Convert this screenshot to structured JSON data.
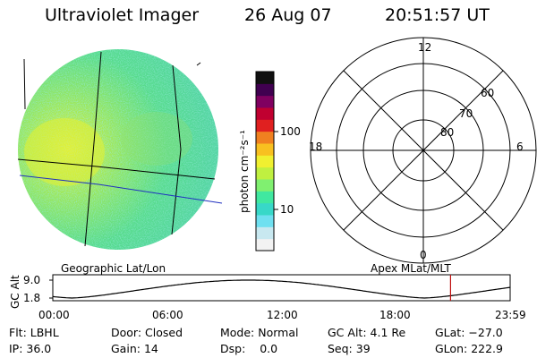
{
  "header": {
    "instrument": "Ultraviolet Imager",
    "date": "26 Aug 07",
    "time": "20:51:57 UT"
  },
  "colorbar": {
    "unit_label": "photon cm⁻²s⁻¹",
    "ticks": [
      "100",
      "10"
    ],
    "colors": [
      "#f2f2f2",
      "#c8e8f0",
      "#6fe0f0",
      "#38d8c8",
      "#40e8a0",
      "#80f070",
      "#c0f040",
      "#f0f030",
      "#f8c020",
      "#f08020",
      "#e02020",
      "#c00030",
      "#800060",
      "#400050",
      "#101010"
    ]
  },
  "polar": {
    "mlt_labels": {
      "top": "12",
      "left": "18",
      "right": "6",
      "bottom": "0"
    },
    "mlat_labels": [
      "60",
      "70",
      "80"
    ]
  },
  "labels": {
    "left_grid": "Geographic Lat/Lon",
    "right_grid": "Apex MLat/MLT"
  },
  "altitude_plot": {
    "y_label": "GC Alt",
    "y_ticks": [
      "9.0",
      "1.8"
    ],
    "x_ticks": [
      "00:00",
      "06:00",
      "12:00",
      "18:00",
      "23:59"
    ],
    "marker_time_hours": 20.87
  },
  "status": {
    "filter_label": "Flt:",
    "filter_value": "LBHL",
    "ip_label": "IP:",
    "ip_value": "36.0",
    "door_label": "Door:",
    "door_value": "Closed",
    "gain_label": "Gain:",
    "gain_value": "14",
    "mode_label": "Mode:",
    "mode_value": "Normal",
    "dsp_label": "Dsp:",
    "dsp_value": "0.0",
    "gcalt_label": "GC Alt:",
    "gcalt_value": "4.1 Re",
    "seq_label": "Seq:",
    "seq_value": "39",
    "glat_label": "GLat:",
    "glat_value": "−27.0",
    "glon_label": "GLon:",
    "glon_value": "222.9"
  }
}
